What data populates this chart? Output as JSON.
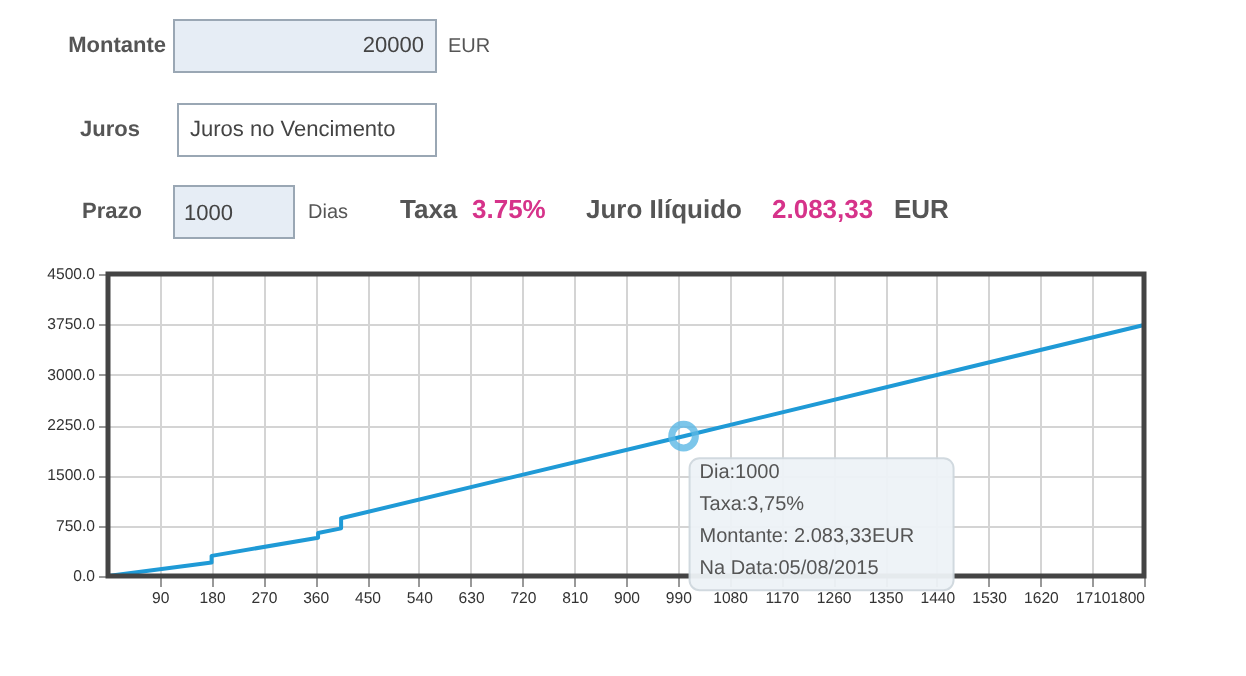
{
  "chart_data": {
    "type": "line",
    "x": [
      0,
      180,
      180,
      365,
      365,
      405,
      405,
      1000,
      1800
    ],
    "series": [
      {
        "color": "#1f9ad6",
        "values": [
          0,
          200,
          300,
          570,
          640,
          710,
          860,
          2083.33,
          3740
        ]
      }
    ],
    "xlim": [
      0,
      1800
    ],
    "xticks": [
      90,
      180,
      270,
      360,
      450,
      540,
      630,
      720,
      810,
      900,
      990,
      1080,
      1170,
      1260,
      1350,
      1440,
      1530,
      1620,
      1710,
      1800
    ],
    "ylim": [
      0,
      4500
    ],
    "yticks": [
      {
        "value": 0,
        "label": "0.0"
      },
      {
        "value": 750,
        "label": "750.0"
      },
      {
        "value": 1500,
        "label": "1500.0"
      },
      {
        "value": 2250,
        "label": "2250.0"
      },
      {
        "value": 3000,
        "label": "3000.0"
      },
      {
        "value": 3750,
        "label": "3750.0"
      },
      {
        "value": 4500,
        "label": "4500.0"
      }
    ],
    "grid": true,
    "marker": "none",
    "line_style": "solid",
    "annotations": [
      "Montante",
      "20000",
      "EUR",
      "Juros",
      "Juros no Vencimento",
      "Prazo",
      "1000",
      "Dias",
      "Taxa",
      "3.75%",
      "Juro Ilíquido",
      "2.083,33",
      "EUR",
      {
        "text": "Dia:1000\nTaxa:3,75%\nMontante: 2.083,33EUR\nNa Data:05/08/2015",
        "x": 1000,
        "y": 2083.33
      }
    ]
  }
}
